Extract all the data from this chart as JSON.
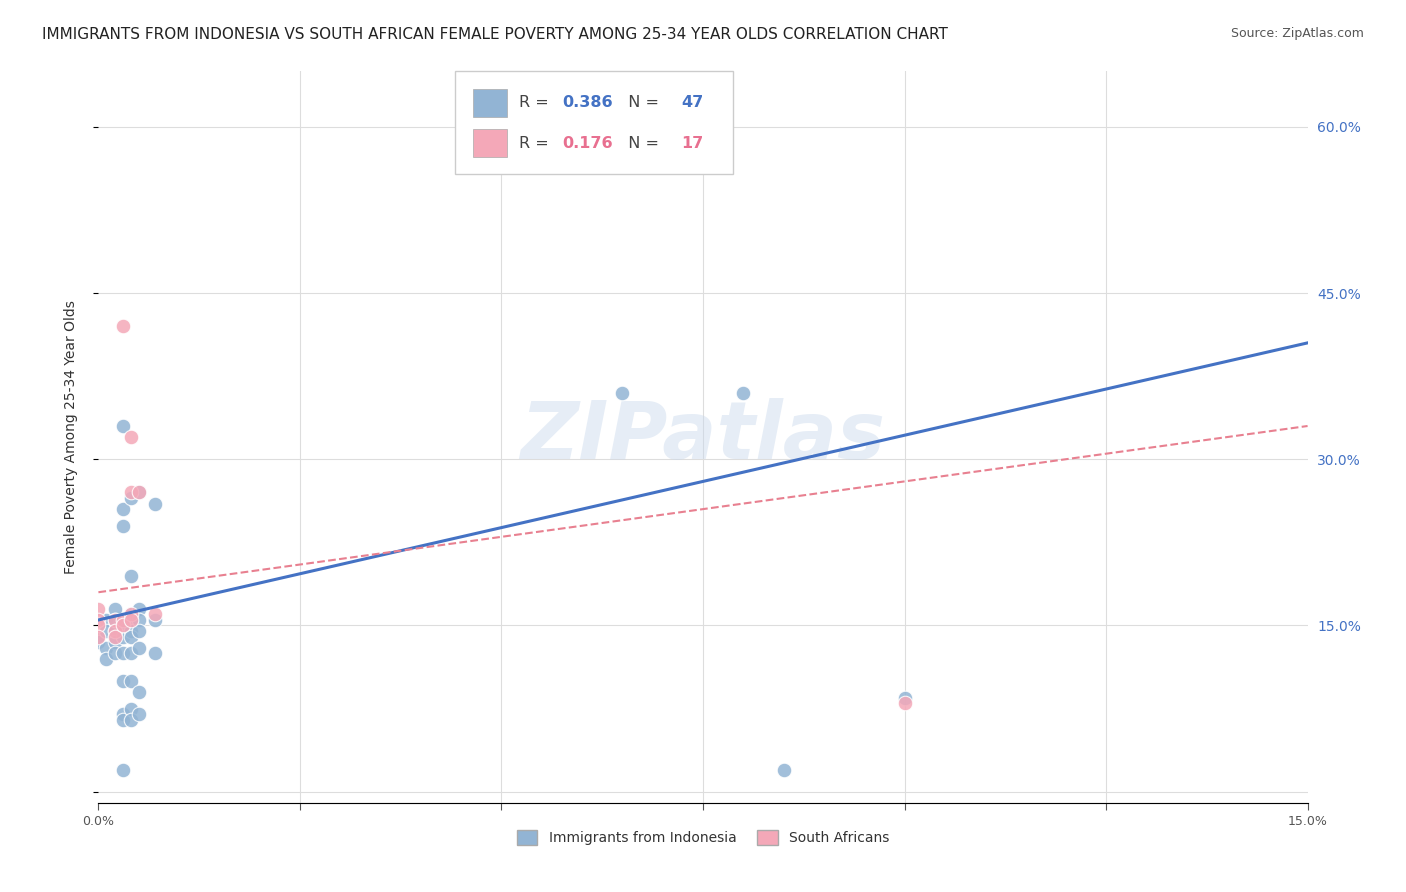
{
  "title": "IMMIGRANTS FROM INDONESIA VS SOUTH AFRICAN FEMALE POVERTY AMONG 25-34 YEAR OLDS CORRELATION CHART",
  "source": "Source: ZipAtlas.com",
  "ylabel_label": "Female Poverty Among 25-34 Year Olds",
  "legend_label_indonesia": "Immigrants from Indonesia",
  "legend_label_sa": "South Africans",
  "watermark_text": "ZIPatlas",
  "xlim": [
    0.0,
    15.0
  ],
  "ylim": [
    -1.0,
    65.0
  ],
  "x_ticks": [
    0.0,
    2.5,
    5.0,
    7.5,
    10.0,
    12.5,
    15.0
  ],
  "y_ticks_right": [
    0.0,
    15.0,
    30.0,
    45.0,
    60.0
  ],
  "blue_scatter": [
    [
      0.0,
      14.0
    ],
    [
      0.0,
      13.5
    ],
    [
      0.1,
      15.5
    ],
    [
      0.1,
      14.5
    ],
    [
      0.1,
      13.0
    ],
    [
      0.1,
      12.0
    ],
    [
      0.2,
      16.5
    ],
    [
      0.2,
      15.5
    ],
    [
      0.2,
      14.5
    ],
    [
      0.2,
      14.0
    ],
    [
      0.2,
      13.5
    ],
    [
      0.2,
      12.5
    ],
    [
      0.3,
      33.0
    ],
    [
      0.3,
      25.5
    ],
    [
      0.3,
      24.0
    ],
    [
      0.3,
      15.5
    ],
    [
      0.3,
      15.0
    ],
    [
      0.3,
      14.0
    ],
    [
      0.3,
      12.5
    ],
    [
      0.3,
      10.0
    ],
    [
      0.3,
      7.0
    ],
    [
      0.3,
      6.5
    ],
    [
      0.3,
      2.0
    ],
    [
      0.4,
      26.5
    ],
    [
      0.4,
      19.5
    ],
    [
      0.4,
      16.0
    ],
    [
      0.4,
      15.5
    ],
    [
      0.4,
      14.5
    ],
    [
      0.4,
      14.0
    ],
    [
      0.4,
      12.5
    ],
    [
      0.4,
      10.0
    ],
    [
      0.4,
      7.5
    ],
    [
      0.4,
      6.5
    ],
    [
      0.5,
      27.0
    ],
    [
      0.5,
      16.5
    ],
    [
      0.5,
      15.5
    ],
    [
      0.5,
      14.5
    ],
    [
      0.5,
      13.0
    ],
    [
      0.5,
      9.0
    ],
    [
      0.5,
      7.0
    ],
    [
      0.7,
      26.0
    ],
    [
      0.7,
      15.5
    ],
    [
      0.7,
      12.5
    ],
    [
      6.5,
      36.0
    ],
    [
      8.0,
      36.0
    ],
    [
      8.5,
      2.0
    ],
    [
      10.0,
      8.5
    ]
  ],
  "pink_scatter": [
    [
      0.0,
      16.5
    ],
    [
      0.0,
      15.5
    ],
    [
      0.0,
      15.0
    ],
    [
      0.0,
      14.0
    ],
    [
      0.2,
      15.5
    ],
    [
      0.2,
      14.5
    ],
    [
      0.2,
      14.0
    ],
    [
      0.3,
      42.0
    ],
    [
      0.3,
      15.5
    ],
    [
      0.3,
      15.0
    ],
    [
      0.4,
      32.0
    ],
    [
      0.4,
      27.0
    ],
    [
      0.4,
      16.0
    ],
    [
      0.4,
      15.5
    ],
    [
      0.5,
      27.0
    ],
    [
      0.7,
      16.0
    ],
    [
      10.0,
      8.0
    ]
  ],
  "blue_line_x": [
    0.0,
    15.0
  ],
  "blue_line_y": [
    15.5,
    40.5
  ],
  "pink_line_x": [
    0.0,
    15.0
  ],
  "pink_line_y": [
    18.0,
    33.0
  ],
  "blue_dot_color": "#92b4d4",
  "pink_dot_color": "#f4a8b8",
  "blue_line_color": "#4472c4",
  "pink_line_color": "#e88090",
  "grid_color": "#dddddd",
  "background_color": "#ffffff",
  "title_fontsize": 11,
  "source_fontsize": 9,
  "axis_label_fontsize": 10,
  "tick_fontsize": 9,
  "legend_r1": "0.386",
  "legend_n1": "47",
  "legend_r2": "0.176",
  "legend_n2": "17"
}
